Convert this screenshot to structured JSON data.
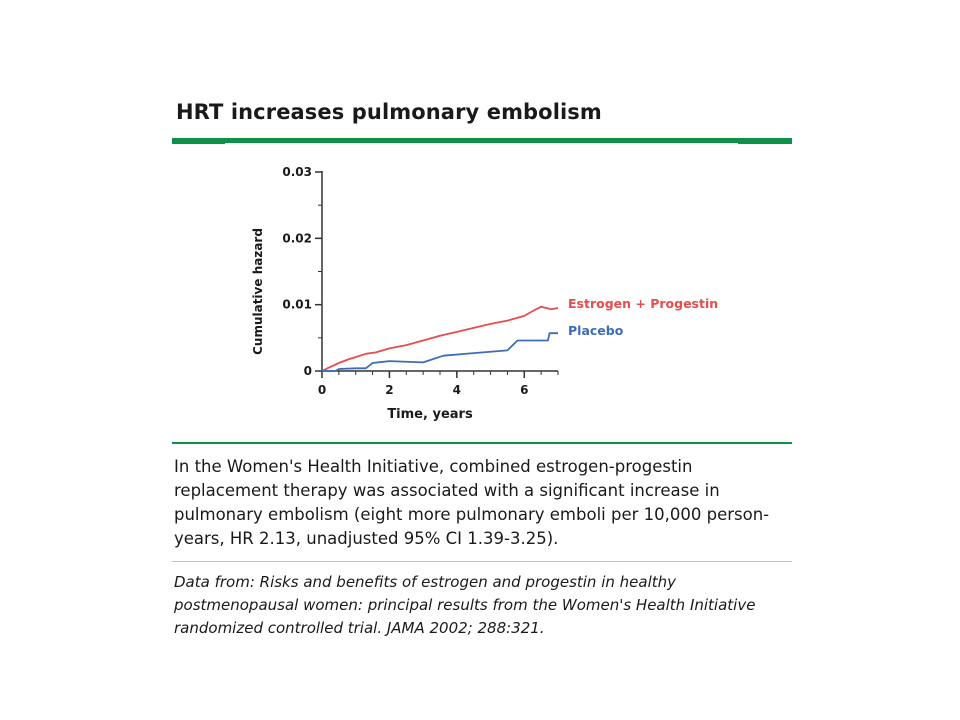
{
  "slide": {
    "title": "HRT increases pulmonary embolism",
    "caption": "In the Women's Health Initiative, combined estrogen-progestin replacement therapy was associated with a significant increase in pulmonary embolism (eight more pulmonary emboli per 10,000 person-years, HR 2.13, unadjusted 95% CI 1.39-3.25).",
    "source": "Data from: Risks and benefits of estrogen and progestin in healthy postmenopausal women: principal results from the Women's Health Initiative randomized controlled trial. JAMA 2002; 288:321.",
    "accent_color": "#0d9148"
  },
  "chart_data": {
    "type": "line",
    "title": "",
    "xlabel": "Time, years",
    "ylabel": "Cumulative hazard",
    "xlim": [
      0,
      7
    ],
    "ylim": [
      0,
      0.03
    ],
    "xticks": [
      {
        "value": 0,
        "label": "0"
      },
      {
        "value": 2,
        "label": "2"
      },
      {
        "value": 4,
        "label": "4"
      },
      {
        "value": 6,
        "label": "6"
      }
    ],
    "yticks": [
      {
        "value": 0,
        "label": "0"
      },
      {
        "value": 0.01,
        "label": "0.01"
      },
      {
        "value": 0.02,
        "label": "0.02"
      },
      {
        "value": 0.03,
        "label": "0.03"
      }
    ],
    "grid": false,
    "series": [
      {
        "name": "Estrogen + Progestin",
        "color": "#e84c4c",
        "points": [
          [
            0,
            0
          ],
          [
            0.2,
            0.0005
          ],
          [
            0.5,
            0.0012
          ],
          [
            0.8,
            0.0018
          ],
          [
            1,
            0.0021
          ],
          [
            1.3,
            0.0026
          ],
          [
            1.6,
            0.0028
          ],
          [
            2,
            0.0034
          ],
          [
            2.5,
            0.0039
          ],
          [
            3,
            0.0046
          ],
          [
            3.5,
            0.0053
          ],
          [
            4,
            0.0059
          ],
          [
            4.5,
            0.0065
          ],
          [
            5,
            0.0071
          ],
          [
            5.5,
            0.0076
          ],
          [
            6,
            0.0083
          ],
          [
            6.2,
            0.0089
          ],
          [
            6.5,
            0.0097
          ],
          [
            6.8,
            0.0093
          ],
          [
            7,
            0.0095
          ]
        ]
      },
      {
        "name": "Placebo",
        "color": "#3d6db5",
        "points": [
          [
            0,
            0
          ],
          [
            0.4,
            0
          ],
          [
            0.5,
            0.0003
          ],
          [
            1.0,
            0.0004
          ],
          [
            1.3,
            0.0004
          ],
          [
            1.4,
            0.0008
          ],
          [
            1.5,
            0.0012
          ],
          [
            2,
            0.0015
          ],
          [
            3,
            0.0013
          ],
          [
            3.6,
            0.0023
          ],
          [
            4.5,
            0.0027
          ],
          [
            5.5,
            0.0031
          ],
          [
            5.8,
            0.0046
          ],
          [
            6.7,
            0.0046
          ],
          [
            6.75,
            0.0057
          ],
          [
            7,
            0.0057
          ]
        ]
      }
    ]
  }
}
